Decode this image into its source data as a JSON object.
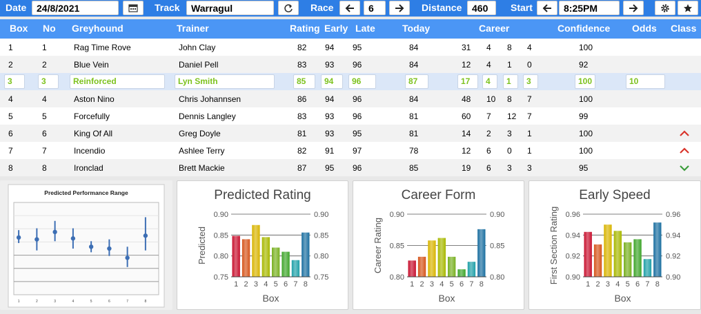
{
  "toolbar": {
    "date_label": "Date",
    "date_value": "24/8/2021",
    "track_label": "Track",
    "track_value": "Warragul",
    "race_label": "Race",
    "race_value": "6",
    "distance_label": "Distance",
    "distance_value": "460",
    "start_label": "Start",
    "start_value": "8:25PM",
    "icons": [
      "calendar-icon",
      "refresh-icon",
      "arrow-left-icon",
      "arrow-right-icon",
      "gear-icon",
      "star-icon"
    ]
  },
  "columns": [
    "Box",
    "No",
    "Greyhound",
    "Trainer",
    "Rating",
    "Early",
    "Late",
    "Today",
    "Career",
    "Confidence",
    "Odds",
    "Class"
  ],
  "rows": [
    {
      "box": "1",
      "no": "1",
      "dog": "Rag Time Rove",
      "trainer": "John Clay",
      "rating": "82",
      "early": "94",
      "late": "95",
      "today": "84",
      "c1": "31",
      "c2": "4",
      "c3": "8",
      "c4": "4",
      "conf": "100",
      "odds": "",
      "cls": ""
    },
    {
      "box": "2",
      "no": "2",
      "dog": "Blue Vein",
      "trainer": "Daniel Pell",
      "rating": "83",
      "early": "93",
      "late": "96",
      "today": "84",
      "c1": "12",
      "c2": "4",
      "c3": "1",
      "c4": "0",
      "conf": "92",
      "odds": "",
      "cls": ""
    },
    {
      "box": "3",
      "no": "3",
      "dog": "Reinforced",
      "trainer": "Lyn Smith",
      "rating": "85",
      "early": "94",
      "late": "96",
      "today": "87",
      "c1": "17",
      "c2": "4",
      "c3": "1",
      "c4": "3",
      "conf": "100",
      "odds": "10",
      "cls": ""
    },
    {
      "box": "4",
      "no": "4",
      "dog": "Aston Nino",
      "trainer": "Chris Johannsen",
      "rating": "86",
      "early": "94",
      "late": "96",
      "today": "84",
      "c1": "48",
      "c2": "10",
      "c3": "8",
      "c4": "7",
      "conf": "100",
      "odds": "",
      "cls": ""
    },
    {
      "box": "5",
      "no": "5",
      "dog": "Forcefully",
      "trainer": "Dennis Langley",
      "rating": "83",
      "early": "93",
      "late": "96",
      "today": "81",
      "c1": "60",
      "c2": "7",
      "c3": "12",
      "c4": "7",
      "conf": "99",
      "odds": "",
      "cls": ""
    },
    {
      "box": "6",
      "no": "6",
      "dog": "King Of All",
      "trainer": "Greg Doyle",
      "rating": "81",
      "early": "93",
      "late": "95",
      "today": "81",
      "c1": "14",
      "c2": "2",
      "c3": "3",
      "c4": "1",
      "conf": "100",
      "odds": "",
      "cls": "up"
    },
    {
      "box": "7",
      "no": "7",
      "dog": "Incendio",
      "trainer": "Ashlee Terry",
      "rating": "82",
      "early": "91",
      "late": "97",
      "today": "78",
      "c1": "12",
      "c2": "6",
      "c3": "0",
      "c4": "1",
      "conf": "100",
      "odds": "",
      "cls": "up"
    },
    {
      "box": "8",
      "no": "8",
      "dog": "Ironclad",
      "trainer": "Brett Mackie",
      "rating": "87",
      "early": "95",
      "late": "96",
      "today": "85",
      "c1": "19",
      "c2": "6",
      "c3": "3",
      "c4": "3",
      "conf": "95",
      "odds": "",
      "cls": "down"
    }
  ],
  "class_icons": {
    "up": "chevron-up-icon",
    "down": "chevron-down-icon"
  },
  "range_chart": {
    "title": "Predicted Performance Range",
    "categories": [
      "1",
      "2",
      "3",
      "4",
      "5",
      "6",
      "7",
      "8"
    ],
    "mid": [
      0.62,
      0.6,
      0.68,
      0.61,
      0.52,
      0.5,
      0.4,
      0.64
    ],
    "low": [
      0.56,
      0.48,
      0.58,
      0.5,
      0.46,
      0.42,
      0.3,
      0.48
    ],
    "high": [
      0.7,
      0.72,
      0.8,
      0.72,
      0.58,
      0.6,
      0.52,
      0.84
    ],
    "ylim": [
      0,
      1
    ]
  },
  "chart_data": [
    {
      "type": "bar",
      "title": "Predicted Rating",
      "ylabel": "Predicted",
      "xlabel": "Box",
      "categories": [
        "1",
        "2",
        "3",
        "4",
        "5",
        "6",
        "7",
        "8"
      ],
      "values": [
        0.848,
        0.84,
        0.874,
        0.845,
        0.82,
        0.81,
        0.79,
        0.856
      ],
      "ylim": [
        0.75,
        0.9
      ],
      "ticks": [
        "0.75",
        "0.80",
        "0.85",
        "0.90"
      ]
    },
    {
      "type": "bar",
      "title": "Career Form",
      "ylabel": "Career Rating",
      "xlabel": "Box",
      "categories": [
        "1",
        "2",
        "3",
        "4",
        "5",
        "6",
        "7",
        "8"
      ],
      "values": [
        0.826,
        0.832,
        0.858,
        0.862,
        0.832,
        0.812,
        0.824,
        0.876
      ],
      "ylim": [
        0.8,
        0.9
      ],
      "ticks": [
        "0.80",
        "0.85",
        "0.90"
      ]
    },
    {
      "type": "bar",
      "title": "Early Speed",
      "ylabel": "First Section Rating",
      "xlabel": "Box",
      "categories": [
        "1",
        "2",
        "3",
        "4",
        "5",
        "6",
        "7",
        "8"
      ],
      "values": [
        0.943,
        0.931,
        0.95,
        0.944,
        0.933,
        0.936,
        0.917,
        0.952
      ],
      "ylim": [
        0.9,
        0.96
      ],
      "ticks": [
        "0.90",
        "0.92",
        "0.94",
        "0.96"
      ]
    }
  ]
}
